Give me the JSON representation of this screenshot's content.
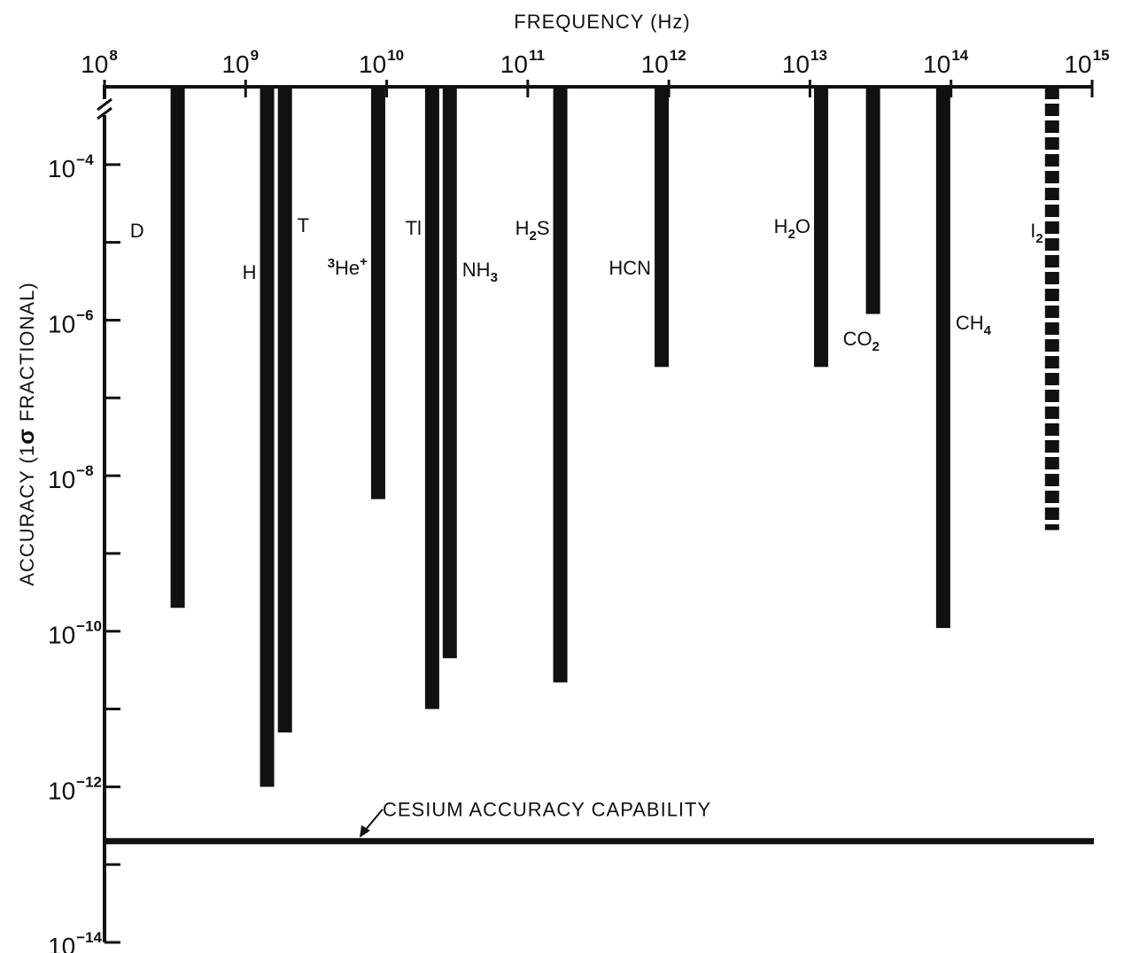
{
  "chart_data": {
    "type": "bar",
    "xlabel": "FREQUENCY (Hz)",
    "ylabel_parts": [
      "ACCURACY (1",
      "σ",
      " FRACTIONAL)"
    ],
    "x_scale": "log",
    "y_scale": "log",
    "xlim": [
      "1e8",
      "1e15"
    ],
    "ylim": [
      "1e-3",
      "1e-14"
    ],
    "x_ticks": [
      {
        "base": "10",
        "exp": "8"
      },
      {
        "base": "10",
        "exp": "9"
      },
      {
        "base": "10",
        "exp": "10"
      },
      {
        "base": "10",
        "exp": "11"
      },
      {
        "base": "10",
        "exp": "12"
      },
      {
        "base": "10",
        "exp": "13"
      },
      {
        "base": "10",
        "exp": "14"
      },
      {
        "base": "10",
        "exp": "15"
      }
    ],
    "y_ticks": [
      {
        "base": "10",
        "exp": "−4"
      },
      {
        "base": "10",
        "exp": "−6"
      },
      {
        "base": "10",
        "exp": "−8"
      },
      {
        "base": "10",
        "exp": "−10"
      },
      {
        "base": "10",
        "exp": "−12"
      },
      {
        "base": "10",
        "exp": "−14"
      }
    ],
    "series": [
      {
        "label": "D",
        "sub": "",
        "pre": "",
        "sup": "",
        "frequency_hz": 330000000.0,
        "accuracy": 2e-10
      },
      {
        "label": "H",
        "sub": "",
        "pre": "",
        "sup": "",
        "frequency_hz": 1420000000.0,
        "accuracy": 1e-12
      },
      {
        "label": "T",
        "sub": "",
        "pre": "",
        "sup": "",
        "frequency_hz": 1900000000.0,
        "accuracy": 5e-12
      },
      {
        "label": "He",
        "sub": "",
        "pre": "3",
        "sup": "+",
        "frequency_hz": 8700000000.0,
        "accuracy": 5e-09
      },
      {
        "label": "Tl",
        "sub": "",
        "pre": "",
        "sup": "",
        "frequency_hz": 21000000000.0,
        "accuracy": 1e-11
      },
      {
        "label": "NH",
        "sub": "3",
        "pre": "",
        "sup": "",
        "frequency_hz": 28000000000.0,
        "accuracy": 4.5e-11
      },
      {
        "label": "H",
        "sub": "2",
        "label2": "S",
        "pre": "",
        "sup": "",
        "frequency_hz": 170000000000.0,
        "accuracy": 2.2e-11
      },
      {
        "label": "HCN",
        "sub": "",
        "pre": "",
        "sup": "",
        "frequency_hz": 890000000000.0,
        "accuracy": 2.5e-07
      },
      {
        "label": "H",
        "sub": "2",
        "label2": "O",
        "pre": "",
        "sup": "",
        "frequency_hz": 12000000000000.0,
        "accuracy": 2.5e-07
      },
      {
        "label": "CO",
        "sub": "2",
        "pre": "",
        "sup": "",
        "frequency_hz": 28000000000000.0,
        "accuracy": 1.2e-06
      },
      {
        "label": "CH",
        "sub": "4",
        "pre": "",
        "sup": "",
        "frequency_hz": 88000000000000.0,
        "accuracy": 1.1e-10
      },
      {
        "label": "I",
        "sub": "2",
        "pre": "",
        "sup": "",
        "frequency_hz": 520000000000000.0,
        "accuracy": 2e-09,
        "style": "dashed"
      }
    ],
    "reference_lines": [
      {
        "label": "CESIUM ACCURACY CAPABILITY",
        "accuracy": 2e-13
      }
    ],
    "grid": false,
    "bar_color": "#111111"
  }
}
